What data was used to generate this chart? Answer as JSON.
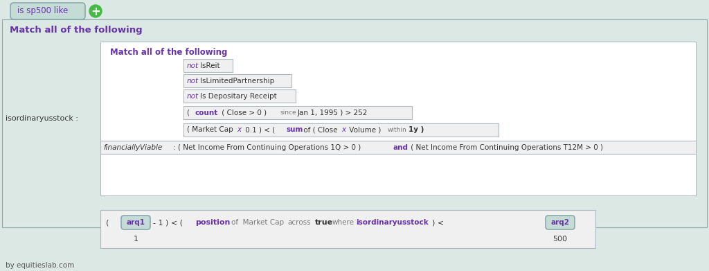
{
  "bg_color": "#dce8e4",
  "panel_bg": "#dce8e4",
  "inner_white": "#ffffff",
  "box_border_gray": "#b0b8c8",
  "box_bg": "#f0f0f0",
  "purple": "#6633aa",
  "gray_text": "#777777",
  "dark_text": "#333333",
  "teal_tab_bg": "#c5dbd5",
  "teal_tab_border": "#88aaaa",
  "green_circle": "#44bb44",
  "tab_text": "is sp500 like",
  "match_all_outer": "Match all of the following",
  "match_all_inner": "Match all of the following",
  "isord_label": "isordinaryusstock :",
  "finviable_label": "financiallyViable :",
  "footer": "by equitieslab.com",
  "bottom_val1": "1",
  "bottom_val2": "500"
}
